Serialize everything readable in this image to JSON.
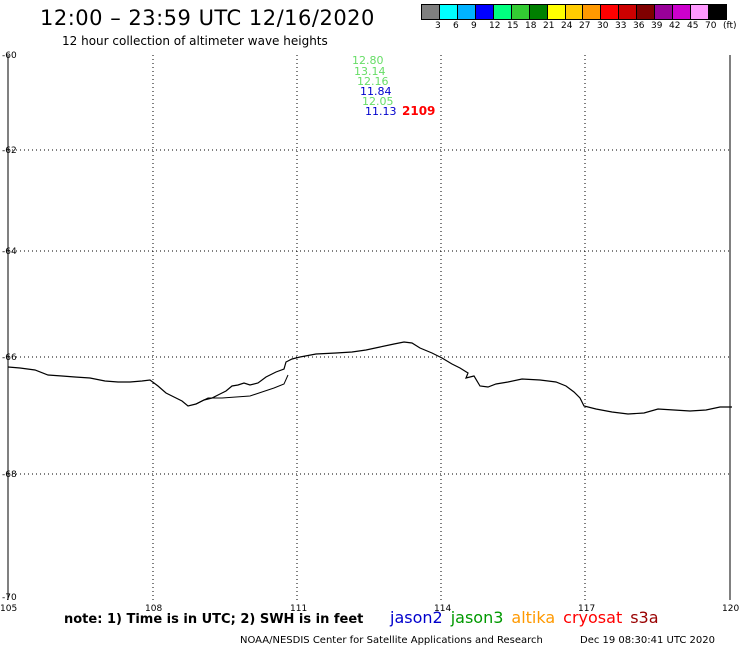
{
  "header": {
    "title": "12:00 – 23:59 UTC 12/16/2020",
    "subtitle": "12 hour collection of altimeter wave heights"
  },
  "color_scale": {
    "colors": [
      "#7f7f7f",
      "#00ffff",
      "#00b2ff",
      "#0000ff",
      "#00ff7f",
      "#33cc33",
      "#008000",
      "#ffff00",
      "#ffcc00",
      "#ff9900",
      "#ff0000",
      "#cc0000",
      "#800000",
      "#990099",
      "#cc00cc",
      "#ff99ff",
      "#000000"
    ],
    "ticks": [
      "3",
      "6",
      "9",
      "12",
      "15",
      "18",
      "21",
      "24",
      "27",
      "30",
      "33",
      "36",
      "39",
      "42",
      "45",
      "70",
      "(ft)"
    ]
  },
  "map": {
    "lat_labels": [
      "-60",
      "-62",
      "-64",
      "-66",
      "-68",
      "-70"
    ],
    "lon_labels": [
      "105",
      "108",
      "111",
      "114",
      "117",
      "120"
    ],
    "pass_id": "2109",
    "swh_readings": [
      {
        "value": "12.80",
        "satellite": "jason3",
        "color": "#66dd66"
      },
      {
        "value": "13.14",
        "satellite": "jason3",
        "color": "#66dd66"
      },
      {
        "value": "12.16",
        "satellite": "jason3",
        "color": "#66dd66"
      },
      {
        "value": "11.84",
        "satellite": "jason2",
        "color": "#0000cc"
      },
      {
        "value": "12.05",
        "satellite": "jason3",
        "color": "#66dd66"
      },
      {
        "value": "11.13",
        "satellite": "jason2",
        "color": "#0000cc"
      }
    ]
  },
  "footer": {
    "note": "note: 1) Time is in UTC; 2) SWH is in feet",
    "satellites": [
      {
        "name": "jason2",
        "color": "#0000cc"
      },
      {
        "name": "jason3",
        "color": "#009900"
      },
      {
        "name": "altika",
        "color": "#ff9900"
      },
      {
        "name": "cryosat",
        "color": "#ff0000"
      },
      {
        "name": "s3a",
        "color": "#990000"
      }
    ],
    "credit": "NOAA/NESDIS Center for Satellite Applications and Research",
    "timestamp": "Dec 19 08:30:41 UTC 2020"
  }
}
